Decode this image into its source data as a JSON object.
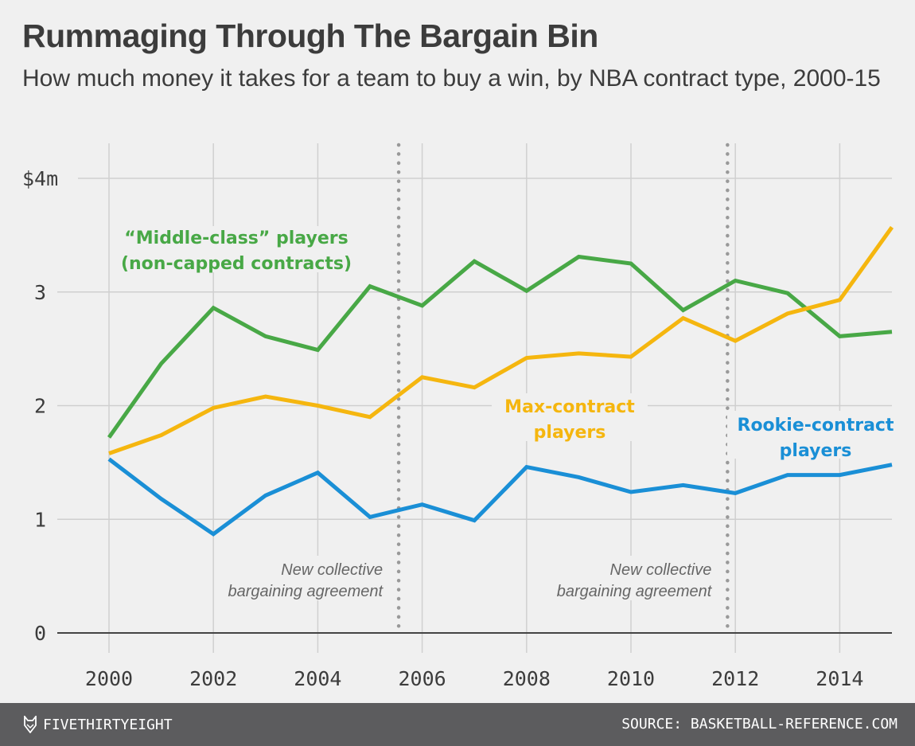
{
  "title": "Rummaging Through The Bargain Bin",
  "subtitle": "How much money it takes for a team to buy a win, by NBA contract type, 2000-15",
  "footer": {
    "brand": "FIVETHIRTYEIGHT",
    "brand_icon": "fox-logo-icon",
    "source": "SOURCE: BASKETBALL-REFERENCE.COM"
  },
  "chart_data": {
    "type": "line",
    "title": "Rummaging Through The Bargain Bin",
    "subtitle": "How much money it takes for a team to buy a win, by NBA contract type, 2000-15",
    "xlabel": "",
    "ylabel": "",
    "x": [
      2000,
      2001,
      2002,
      2003,
      2004,
      2005,
      2006,
      2007,
      2008,
      2009,
      2010,
      2011,
      2012,
      2013,
      2014,
      2015
    ],
    "xlim": [
      2000,
      2015
    ],
    "ylim": [
      0,
      4
    ],
    "grid": true,
    "x_ticks": [
      2000,
      2002,
      2004,
      2006,
      2008,
      2010,
      2012,
      2014
    ],
    "x_tick_labels": [
      "2000",
      "2002",
      "2004",
      "2006",
      "2008",
      "2010",
      "2012",
      "2014"
    ],
    "y_ticks": [
      0,
      1,
      2,
      3,
      4
    ],
    "y_tick_labels": [
      "0",
      "1",
      "2",
      "3",
      "$4m"
    ],
    "series": [
      {
        "name": "“Middle-class” players (non-capped contracts)",
        "label_lines": [
          "“Middle-class” players",
          "(non-capped contracts)"
        ],
        "color": "#48a846",
        "values": [
          1.72,
          2.37,
          2.86,
          2.61,
          2.49,
          3.05,
          2.88,
          3.27,
          3.01,
          3.31,
          3.25,
          2.84,
          3.1,
          2.99,
          2.61,
          2.65
        ]
      },
      {
        "name": "Max-contract players",
        "label_lines": [
          "Max-contract",
          "players"
        ],
        "color": "#f5b60f",
        "values": [
          1.58,
          1.74,
          1.98,
          2.08,
          2.0,
          1.9,
          2.25,
          2.16,
          2.42,
          2.46,
          2.43,
          2.77,
          2.57,
          2.81,
          2.93,
          3.57
        ]
      },
      {
        "name": "Rookie-contract players",
        "label_lines": [
          "Rookie-contract",
          "players"
        ],
        "color": "#1a8fd6",
        "values": [
          1.53,
          1.18,
          0.87,
          1.21,
          1.41,
          1.02,
          1.13,
          0.99,
          1.46,
          1.37,
          1.24,
          1.3,
          1.23,
          1.39,
          1.39,
          1.48
        ]
      }
    ],
    "annotations": [
      {
        "x": 2005.55,
        "lines": [
          "New collective",
          "bargaining agreement"
        ],
        "style": "dotted-vertical-line"
      },
      {
        "x": 2011.85,
        "lines": [
          "New collective",
          "bargaining agreement"
        ],
        "style": "dotted-vertical-line"
      }
    ]
  }
}
